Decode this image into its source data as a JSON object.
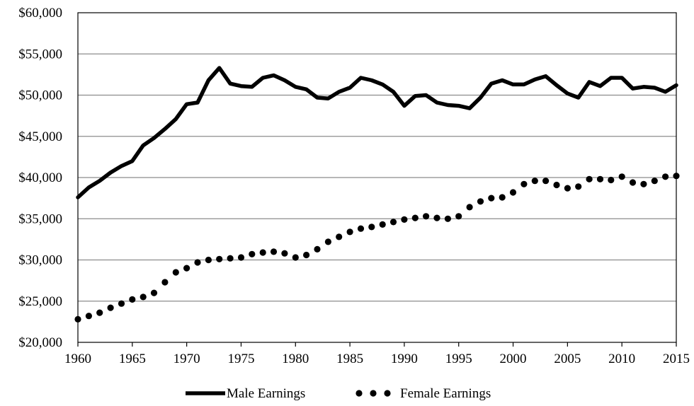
{
  "chart_data": {
    "type": "line",
    "title": "",
    "xlabel": "",
    "ylabel": "",
    "xlim": [
      1960,
      2015
    ],
    "ylim": [
      20000,
      60000
    ],
    "y_ticks": [
      20000,
      25000,
      30000,
      35000,
      40000,
      45000,
      50000,
      55000,
      60000
    ],
    "y_tick_labels": [
      "$20,000",
      "$25,000",
      "$30,000",
      "$35,000",
      "$40,000",
      "$45,000",
      "$50,000",
      "$55,000",
      "$60,000"
    ],
    "x_ticks": [
      1960,
      1965,
      1970,
      1975,
      1980,
      1985,
      1990,
      1995,
      2000,
      2005,
      2010,
      2015
    ],
    "x_tick_labels": [
      "1960",
      "1965",
      "1970",
      "1975",
      "1980",
      "1985",
      "1990",
      "1995",
      "2000",
      "2005",
      "2010",
      "2015"
    ],
    "grid": "horizontal",
    "legend_position": "bottom",
    "x": [
      1960,
      1961,
      1962,
      1963,
      1964,
      1965,
      1966,
      1967,
      1968,
      1969,
      1970,
      1971,
      1972,
      1973,
      1974,
      1975,
      1976,
      1977,
      1978,
      1979,
      1980,
      1981,
      1982,
      1983,
      1984,
      1985,
      1986,
      1987,
      1988,
      1989,
      1990,
      1991,
      1992,
      1993,
      1994,
      1995,
      1996,
      1997,
      1998,
      1999,
      2000,
      2001,
      2002,
      2003,
      2004,
      2005,
      2006,
      2007,
      2008,
      2009,
      2010,
      2011,
      2012,
      2013,
      2014,
      2015
    ],
    "series": [
      {
        "name": "Male Earnings",
        "style": "solid",
        "color": "#000000",
        "values": [
          37600,
          38800,
          39600,
          40600,
          41400,
          42000,
          43900,
          44800,
          45900,
          47100,
          48900,
          49100,
          51800,
          53300,
          51400,
          51100,
          51000,
          52100,
          52400,
          51800,
          51000,
          50700,
          49700,
          49600,
          50400,
          50900,
          52100,
          51800,
          51300,
          50400,
          48700,
          49900,
          50000,
          49100,
          48800,
          48700,
          48400,
          49700,
          51400,
          51800,
          51300,
          51300,
          51900,
          52300,
          51200,
          50200,
          49700,
          51600,
          51100,
          52100,
          52100,
          50800,
          51000,
          50900,
          50400,
          51200
        ]
      },
      {
        "name": "Female Earnings",
        "style": "dotted",
        "color": "#000000",
        "values": [
          22800,
          23200,
          23600,
          24200,
          24700,
          25200,
          25500,
          26000,
          27300,
          28500,
          29000,
          29700,
          30000,
          30100,
          30200,
          30300,
          30700,
          30900,
          31000,
          30800,
          30300,
          30600,
          31300,
          32200,
          32800,
          33400,
          33800,
          34000,
          34300,
          34600,
          34900,
          35100,
          35300,
          35100,
          35000,
          35300,
          36400,
          37100,
          37500,
          37600,
          38200,
          39200,
          39600,
          39600,
          39100,
          38700,
          38900,
          39800,
          39800,
          39700,
          40100,
          39400,
          39200,
          39600,
          40100,
          40200
        ]
      }
    ]
  }
}
